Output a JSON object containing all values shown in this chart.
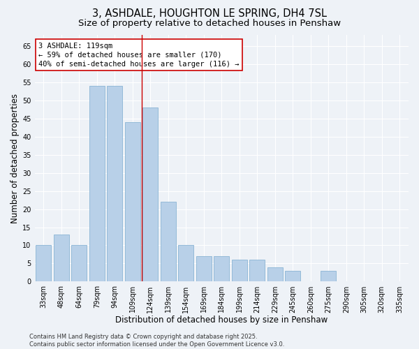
{
  "title_line1": "3, ASHDALE, HOUGHTON LE SPRING, DH4 7SL",
  "title_line2": "Size of property relative to detached houses in Penshaw",
  "xlabel": "Distribution of detached houses by size in Penshaw",
  "ylabel": "Number of detached properties",
  "categories": [
    "33sqm",
    "48sqm",
    "64sqm",
    "79sqm",
    "94sqm",
    "109sqm",
    "124sqm",
    "139sqm",
    "154sqm",
    "169sqm",
    "184sqm",
    "199sqm",
    "214sqm",
    "229sqm",
    "245sqm",
    "260sqm",
    "275sqm",
    "290sqm",
    "305sqm",
    "320sqm",
    "335sqm"
  ],
  "values": [
    10,
    13,
    10,
    54,
    54,
    44,
    48,
    22,
    10,
    7,
    7,
    6,
    6,
    4,
    3,
    0,
    3,
    0,
    0,
    0,
    0
  ],
  "bar_color": "#b8d0e8",
  "bar_edge_color": "#8ab4d4",
  "vline_x_index": 5.5,
  "vline_color": "#cc0000",
  "annotation_box_text": "3 ASHDALE: 119sqm\n← 59% of detached houses are smaller (170)\n40% of semi-detached houses are larger (116) →",
  "ylim": [
    0,
    68
  ],
  "yticks": [
    0,
    5,
    10,
    15,
    20,
    25,
    30,
    35,
    40,
    45,
    50,
    55,
    60,
    65
  ],
  "background_color": "#eef2f7",
  "grid_color": "#ffffff",
  "footer_line1": "Contains HM Land Registry data © Crown copyright and database right 2025.",
  "footer_line2": "Contains public sector information licensed under the Open Government Licence v3.0.",
  "title_fontsize": 10.5,
  "subtitle_fontsize": 9.5,
  "axis_label_fontsize": 8.5,
  "tick_fontsize": 7,
  "annotation_fontsize": 7.5,
  "footer_fontsize": 6
}
